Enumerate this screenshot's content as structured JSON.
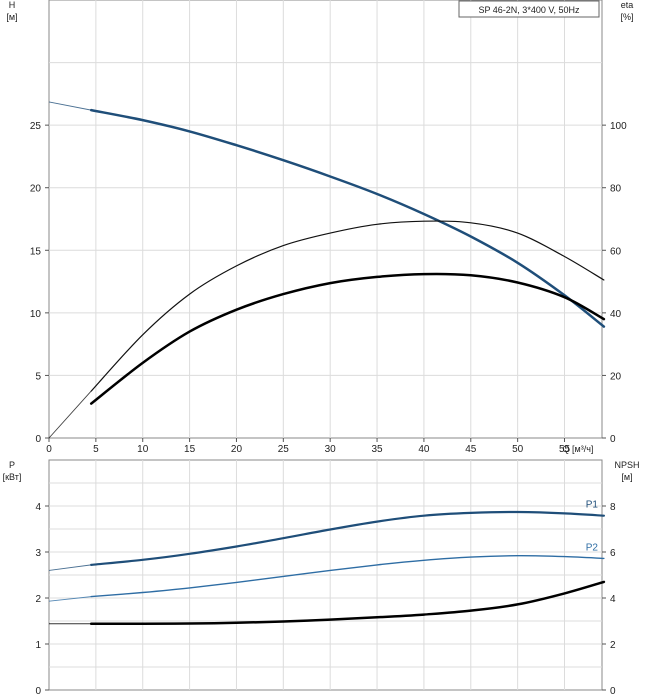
{
  "chart_data": [
    {
      "type": "line",
      "title": "SP 46-2N, 3*400 V, 50Hz",
      "ylabel": "H",
      "ylabel_unit": "[м]",
      "y2label": "eta",
      "y2label_unit": "[%]",
      "xlabel": "Q [м³/ч]",
      "xlim": [
        0,
        59
      ],
      "ylim": [
        0,
        35
      ],
      "y2lim": [
        0,
        140
      ],
      "x_ticks": [
        "0",
        "5",
        "10",
        "15",
        "20",
        "25",
        "30",
        "35",
        "40",
        "45",
        "50",
        "55"
      ],
      "y_ticks": [
        "0",
        "5",
        "10",
        "15",
        "20",
        "25"
      ],
      "y2_ticks": [
        "0",
        "20",
        "40",
        "60",
        "80",
        "100"
      ],
      "grid": true,
      "series": [
        {
          "color": "#1f4e79",
          "axis": "left",
          "width": 2.5,
          "extrapolated": true,
          "x": [
            4.5,
            10,
            15,
            20,
            25,
            30,
            35,
            40,
            45,
            50,
            55,
            59.2
          ],
          "y": [
            26.2,
            25.4,
            24.5,
            23.4,
            22.2,
            20.9,
            19.5,
            17.9,
            16.1,
            14.0,
            11.4,
            8.9
          ]
        },
        {
          "color": "#111111",
          "axis": "right",
          "width": 1.2,
          "extrapolated": true,
          "x": [
            4.5,
            10,
            15,
            20,
            25,
            30,
            35,
            40,
            45,
            50,
            55,
            59.2
          ],
          "y": [
            15,
            33,
            46,
            55,
            61.5,
            65.5,
            68.3,
            69.3,
            68.8,
            65.5,
            58,
            50.5
          ]
        },
        {
          "color": "#000000",
          "axis": "right",
          "width": 2.5,
          "extrapolated": false,
          "x": [
            4.5,
            10,
            15,
            20,
            25,
            30,
            35,
            40,
            45,
            50,
            55,
            59.2
          ],
          "y": [
            11,
            24,
            34,
            41,
            46,
            49.5,
            51.5,
            52.4,
            52,
            49.7,
            45,
            38
          ]
        }
      ]
    },
    {
      "type": "line",
      "ylabel": "P",
      "ylabel_unit": "[кВт]",
      "y2label": "NPSH",
      "y2label_unit": "[м]",
      "xlim": [
        0,
        59
      ],
      "ylim": [
        0,
        5
      ],
      "y2lim": [
        0,
        10
      ],
      "y_ticks": [
        "0",
        "1",
        "2",
        "3",
        "4"
      ],
      "y2_ticks": [
        "0",
        "2",
        "4",
        "6",
        "8"
      ],
      "grid": true,
      "series": [
        {
          "name": "P1",
          "color": "#1f4e79",
          "axis": "left",
          "width": 2.2,
          "extrapolated": true,
          "x": [
            4.5,
            10,
            15,
            20,
            25,
            30,
            35,
            40,
            45,
            50,
            55,
            59.2
          ],
          "y": [
            2.72,
            2.83,
            2.96,
            3.12,
            3.3,
            3.49,
            3.66,
            3.79,
            3.85,
            3.87,
            3.84,
            3.79
          ]
        },
        {
          "name": "P2",
          "color": "#2e6da4",
          "axis": "left",
          "width": 1.4,
          "extrapolated": true,
          "x": [
            4.5,
            10,
            15,
            20,
            25,
            30,
            35,
            40,
            45,
            50,
            55,
            59.2
          ],
          "y": [
            2.03,
            2.12,
            2.22,
            2.34,
            2.47,
            2.6,
            2.72,
            2.82,
            2.89,
            2.92,
            2.9,
            2.86
          ]
        },
        {
          "color": "#000000",
          "axis": "right",
          "width": 2.5,
          "extrapolated": true,
          "x": [
            4.5,
            10,
            15,
            20,
            25,
            30,
            35,
            40,
            45,
            50,
            55,
            59.2
          ],
          "y": [
            2.88,
            2.88,
            2.89,
            2.92,
            2.98,
            3.06,
            3.16,
            3.28,
            3.45,
            3.72,
            4.2,
            4.7
          ]
        }
      ]
    }
  ]
}
